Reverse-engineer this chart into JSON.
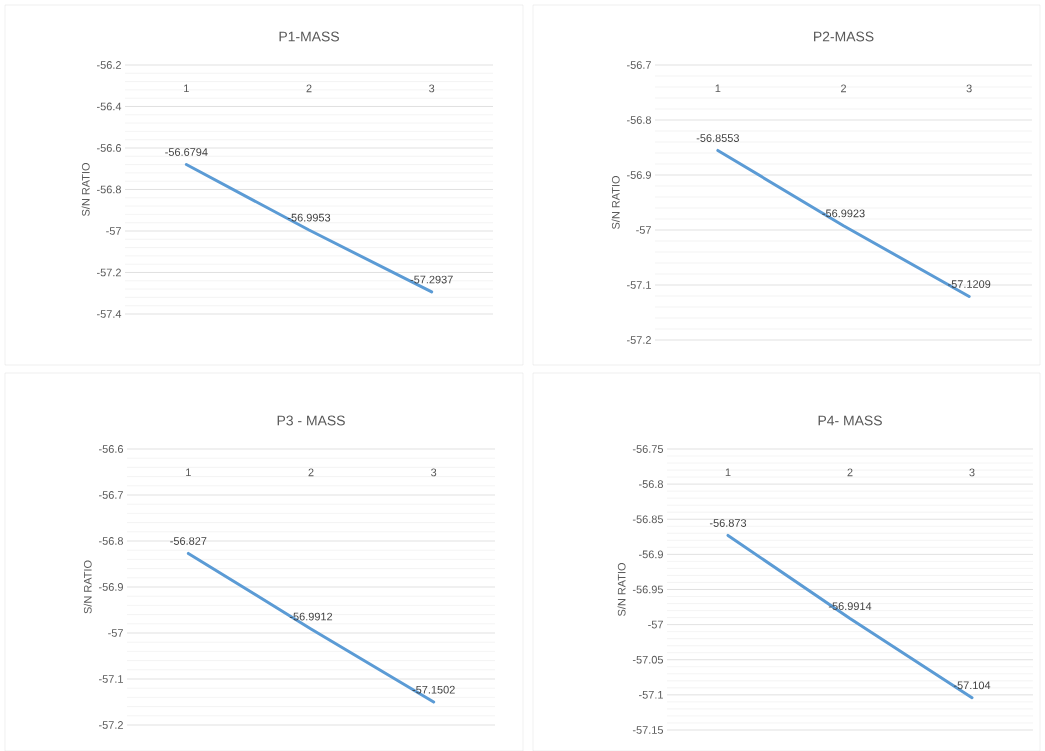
{
  "chart_data": [
    {
      "type": "line",
      "title": "P1-MASS",
      "ylabel": "S/N RATIO",
      "categories": [
        "1",
        "2",
        "3"
      ],
      "values": [
        -56.6794,
        -56.9953,
        -57.2937
      ],
      "color": "#5b9bd5",
      "ylim": [
        -57.4,
        -56.2
      ],
      "yticks": [
        -57.4,
        -57.2,
        -57,
        -56.8,
        -56.6,
        -56.4,
        -56.2
      ],
      "grid": "y",
      "data_labels": true
    },
    {
      "type": "line",
      "title": "P2-MASS",
      "ylabel": "S/N RATIO",
      "categories": [
        "1",
        "2",
        "3"
      ],
      "values": [
        -56.8553,
        -56.9923,
        -57.1209
      ],
      "color": "#5b9bd5",
      "ylim": [
        -57.2,
        -56.7
      ],
      "yticks": [
        -57.2,
        -57.1,
        -57,
        -56.9,
        -56.8,
        -56.7
      ],
      "grid": "y",
      "data_labels": true
    },
    {
      "type": "line",
      "title": "P3 - MASS",
      "ylabel": "S/N RATIO",
      "categories": [
        "1",
        "2",
        "3"
      ],
      "values": [
        -56.827,
        -56.9912,
        -57.1502
      ],
      "color": "#5b9bd5",
      "ylim": [
        -57.2,
        -56.6
      ],
      "yticks": [
        -57.2,
        -57.1,
        -57,
        -56.9,
        -56.8,
        -56.7,
        -56.6
      ],
      "grid": "y",
      "data_labels": true
    },
    {
      "type": "line",
      "title": "P4- MASS",
      "ylabel": "S/N RATIO",
      "categories": [
        "1",
        "2",
        "3"
      ],
      "values": [
        -56.873,
        -56.9914,
        -57.104
      ],
      "color": "#5b9bd5",
      "ylim": [
        -57.15,
        -56.75
      ],
      "yticks": [
        -57.15,
        -57.1,
        -57.05,
        -57,
        -56.95,
        -56.9,
        -56.85,
        -56.8,
        -56.75
      ],
      "grid": "y",
      "data_labels": true
    }
  ]
}
